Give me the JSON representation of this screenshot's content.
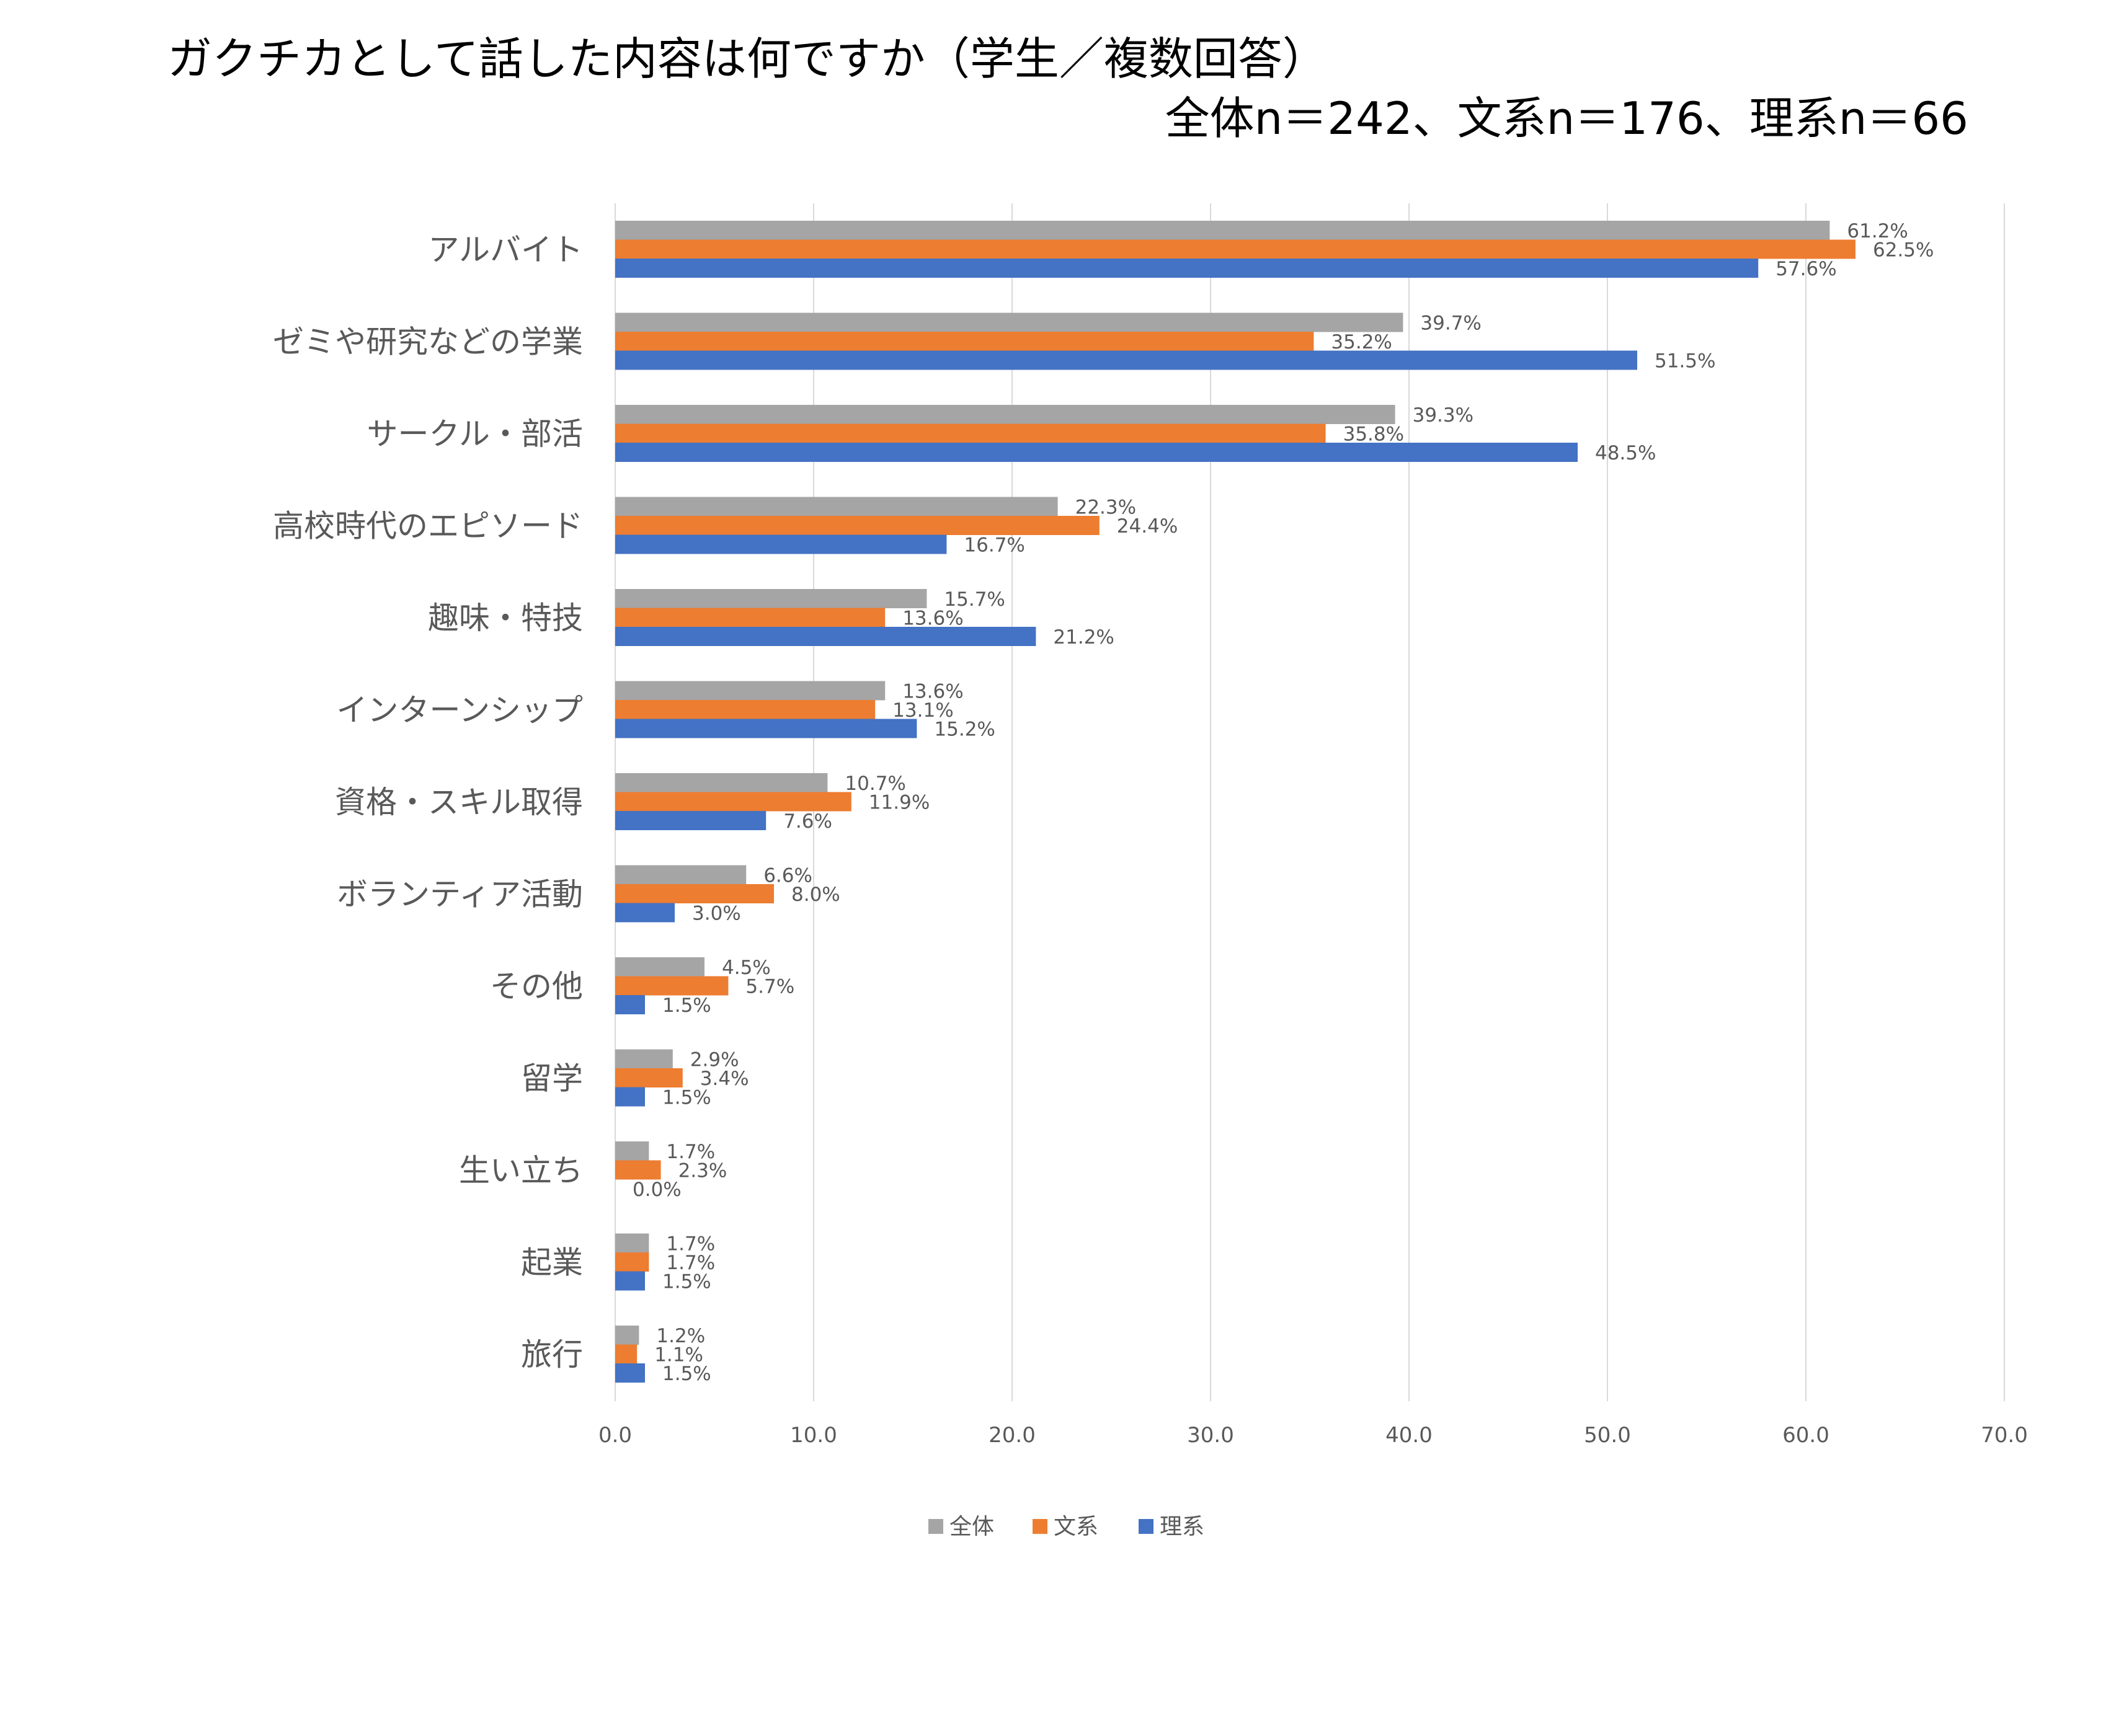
{
  "title_line1": "ガクチカとして話した内容は何ですか（学生／複数回答）",
  "title_line2": "全体n＝242、文系n＝176、理系n＝66",
  "chart_data": {
    "type": "bar",
    "orientation": "horizontal",
    "title": "ガクチカとして話した内容は何ですか（学生／複数回答） 全体n＝242、文系n＝176、理系n＝66",
    "categories": [
      "アルバイト",
      "ゼミや研究などの学業",
      "サークル・部活",
      "高校時代のエピソード",
      "趣味・特技",
      "インターンシップ",
      "資格・スキル取得",
      "ボランティア活動",
      "その他",
      "留学",
      "生い立ち",
      "起業",
      "旅行"
    ],
    "series": [
      {
        "name": "全体",
        "color": "#a5a5a5",
        "values": [
          61.2,
          39.7,
          39.3,
          22.3,
          15.7,
          13.6,
          10.7,
          6.6,
          4.5,
          2.9,
          1.7,
          1.7,
          1.2
        ]
      },
      {
        "name": "文系",
        "color": "#ed7d31",
        "values": [
          62.5,
          35.2,
          35.8,
          24.4,
          13.6,
          13.1,
          11.9,
          8.0,
          5.7,
          3.4,
          2.3,
          1.7,
          1.1
        ]
      },
      {
        "name": "理系",
        "color": "#4472c4",
        "values": [
          57.6,
          51.5,
          48.5,
          16.7,
          21.2,
          15.2,
          7.6,
          3.0,
          1.5,
          1.5,
          0.0,
          1.5,
          1.5
        ]
      }
    ],
    "xlim": [
      0,
      70
    ],
    "x_ticks": [
      "0.0",
      "10.0",
      "20.0",
      "30.0",
      "40.0",
      "50.0",
      "60.0",
      "70.0"
    ],
    "value_suffix": "%",
    "grid": "vertical",
    "legend": "bottom"
  }
}
